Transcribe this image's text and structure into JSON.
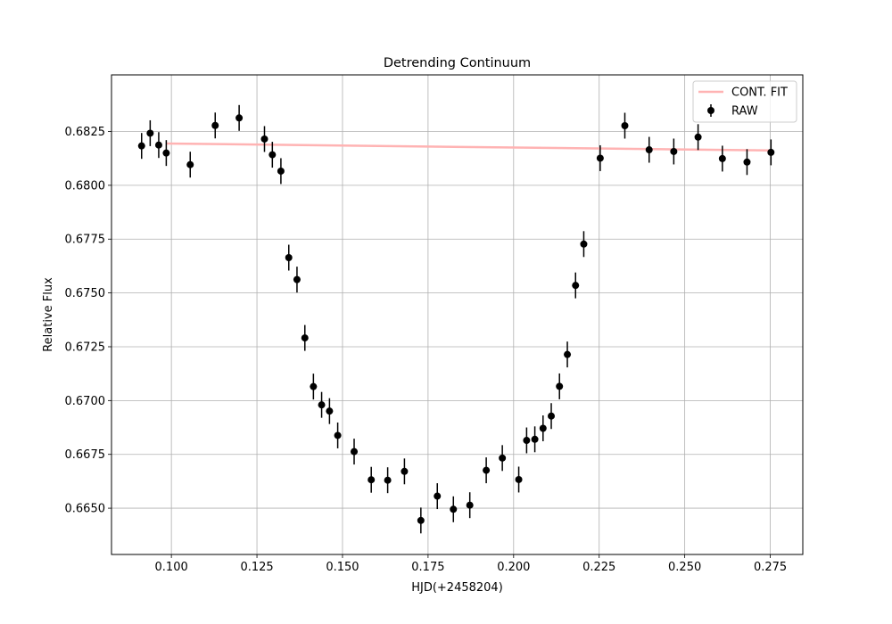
{
  "chart_data": {
    "type": "scatter",
    "title": "Detrending Continuum",
    "xlabel": "HJD(+2458204)",
    "ylabel": "Relative Flux",
    "xlim": [
      0.0825,
      0.2845
    ],
    "ylim": [
      0.66285,
      0.68513
    ],
    "xticks": [
      0.1,
      0.125,
      0.15,
      0.175,
      0.2,
      0.225,
      0.25,
      0.275
    ],
    "yticks": [
      0.665,
      0.6675,
      0.67,
      0.6725,
      0.675,
      0.6775,
      0.68,
      0.6825
    ],
    "xtick_labels": [
      "0.100",
      "0.125",
      "0.150",
      "0.175",
      "0.200",
      "0.225",
      "0.250",
      "0.275"
    ],
    "ytick_labels": [
      "0.6650",
      "0.6675",
      "0.6700",
      "0.6725",
      "0.6750",
      "0.6775",
      "0.6800",
      "0.6825"
    ],
    "grid": true,
    "legend_position": "top-right",
    "series": [
      {
        "name": "CONT. FIT",
        "kind": "line",
        "color": "#ffb3b3",
        "x": [
          0.0985,
          0.2752
        ],
        "y": [
          0.68194,
          0.68162
        ]
      },
      {
        "name": "RAW",
        "kind": "errorbar",
        "color": "#000000",
        "x": [
          0.0913,
          0.0938,
          0.0963,
          0.0985,
          0.1055,
          0.1128,
          0.1198,
          0.1272,
          0.1295,
          0.132,
          0.1343,
          0.1367,
          0.139,
          0.1415,
          0.1439,
          0.1462,
          0.1486,
          0.1534,
          0.1584,
          0.1632,
          0.1681,
          0.1729,
          0.1777,
          0.1824,
          0.1872,
          0.192,
          0.1967,
          0.2015,
          0.2038,
          0.2062,
          0.2086,
          0.211,
          0.2134,
          0.2157,
          0.2181,
          0.2205,
          0.2253,
          0.2325,
          0.2396,
          0.2468,
          0.2539,
          0.261,
          0.2682,
          0.2752
        ],
        "y": [
          0.68183,
          0.68242,
          0.68187,
          0.6815,
          0.68096,
          0.68278,
          0.68313,
          0.68215,
          0.68142,
          0.68066,
          0.67664,
          0.67562,
          0.67291,
          0.67065,
          0.6698,
          0.66951,
          0.66838,
          0.66763,
          0.66632,
          0.6663,
          0.66671,
          0.66443,
          0.66556,
          0.66495,
          0.66514,
          0.66676,
          0.66733,
          0.66633,
          0.66815,
          0.6682,
          0.66871,
          0.66928,
          0.67066,
          0.67214,
          0.67535,
          0.67727,
          0.68126,
          0.68277,
          0.68165,
          0.68157,
          0.68224,
          0.68124,
          0.68108,
          0.68153
        ],
        "yerr": 0.0006
      }
    ]
  }
}
